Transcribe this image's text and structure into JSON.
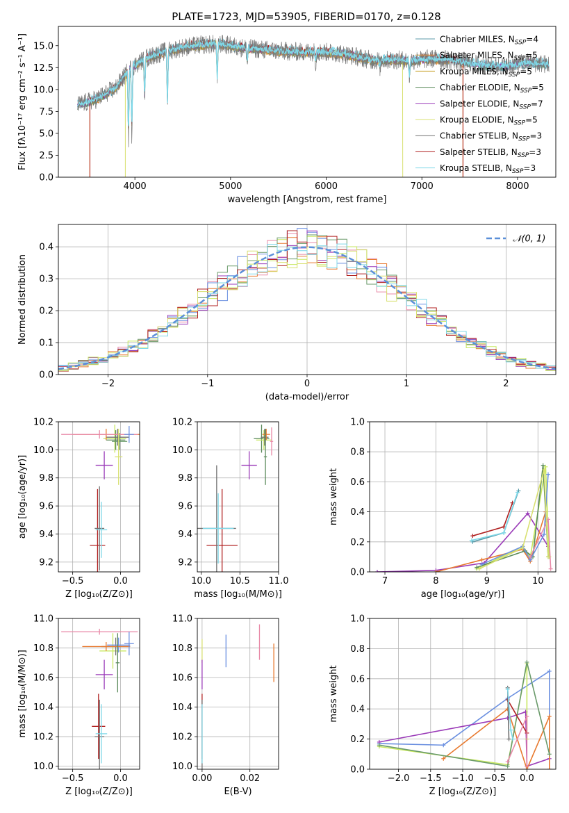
{
  "figure": {
    "title": "PLATE=1723, MJD=53905, FIBERID=0170, z=0.128"
  },
  "colors": {
    "Chabrier MILES": "#5b9aa8",
    "Salpeter MILES": "#e8913c",
    "Kroupa MILES": "#c8a02a",
    "Chabrier ELODIE": "#5a8a5a",
    "Salpeter ELODIE": "#9a3ab8",
    "Kroupa ELODIE": "#d8e070",
    "Chabrier STELIB": "#707070",
    "Salpeter STELIB": "#b02020",
    "Kroupa STELIB": "#7fd8e8",
    "extra blue": "#6a8fe0",
    "extra orange": "#e87a30",
    "extra pink": "#e88aa8",
    "extra lime": "#c8e860",
    "extra green": "#6a9a6a"
  },
  "chart_data": [
    {
      "id": "spectrum",
      "type": "line",
      "title": "PLATE=1723, MJD=53905, FIBERID=0170, z=0.128",
      "xlabel": "wavelength [Angstrom, rest frame]",
      "ylabel": "Flux [fλ10⁻¹⁷ erg cm⁻² s⁻¹ A⁻¹]",
      "xlim": [
        3200,
        8400
      ],
      "ylim": [
        0,
        17.2
      ],
      "xticks": [
        4000,
        5000,
        6000,
        7000,
        8000
      ],
      "yticks": [
        0.0,
        2.5,
        5.0,
        7.5,
        10.0,
        12.5,
        15.0
      ],
      "grid": false,
      "legend_position": "upper right",
      "legend": [
        {
          "main": "Chabrier MILES, N",
          "sub": "SSP",
          "tail": "=4",
          "color": "#5b9aa8"
        },
        {
          "main": "Salpeter MILES, N",
          "sub": "SSP",
          "tail": "=5",
          "color": "#e8913c"
        },
        {
          "main": "Kroupa MILES, N",
          "sub": "SSP",
          "tail": "=5",
          "color": "#c8a02a"
        },
        {
          "main": "Chabrier ELODIE, N",
          "sub": "SSP",
          "tail": "=5",
          "color": "#5a8a5a"
        },
        {
          "main": "Salpeter ELODIE, N",
          "sub": "SSP",
          "tail": "=7",
          "color": "#9a3ab8"
        },
        {
          "main": "Kroupa ELODIE, N",
          "sub": "SSP",
          "tail": "=5",
          "color": "#d8e070"
        },
        {
          "main": "Chabrier STELIB, N",
          "sub": "SSP",
          "tail": "=3",
          "color": "#707070"
        },
        {
          "main": "Salpeter STELIB, N",
          "sub": "SSP",
          "tail": "=3",
          "color": "#b02020"
        },
        {
          "main": "Kroupa STELIB, N",
          "sub": "SSP",
          "tail": "=3",
          "color": "#7fd8e8"
        }
      ],
      "continuum": [
        [
          3400,
          8.2
        ],
        [
          3600,
          8.9
        ],
        [
          3800,
          10.2
        ],
        [
          3950,
          12.4
        ],
        [
          4100,
          13.5
        ],
        [
          4300,
          14.3
        ],
        [
          4500,
          14.8
        ],
        [
          4700,
          15.1
        ],
        [
          4900,
          15.2
        ],
        [
          5100,
          14.8
        ],
        [
          5300,
          14.6
        ],
        [
          5500,
          14.4
        ],
        [
          5700,
          14.3
        ],
        [
          5900,
          14.3
        ],
        [
          6100,
          14.2
        ],
        [
          6300,
          13.8
        ],
        [
          6500,
          13.3
        ],
        [
          6700,
          13.4
        ],
        [
          6900,
          13.3
        ],
        [
          7100,
          13.5
        ],
        [
          7300,
          13.4
        ],
        [
          7500,
          13.0
        ],
        [
          7700,
          12.7
        ],
        [
          7900,
          12.7
        ],
        [
          8100,
          13.1
        ],
        [
          8300,
          12.9
        ]
      ],
      "dips": [
        [
          3933,
          3.6
        ],
        [
          3968,
          4.2
        ],
        [
          4102,
          8.5
        ],
        [
          4340,
          7.8
        ],
        [
          4861,
          10.5
        ],
        [
          5175,
          12.8
        ],
        [
          5890,
          13.0
        ],
        [
          6563,
          12.5
        ],
        [
          6870,
          11.2
        ]
      ],
      "cutoffs": [
        {
          "series": "Salpeter STELIB",
          "range": [
            3530,
            7430
          ]
        },
        {
          "series": "Kroupa ELODIE",
          "range": [
            3900,
            6800
          ]
        },
        {
          "series": "Salpeter MILES",
          "range": [
            3530,
            7430
          ]
        },
        {
          "series": "Kroupa MILES",
          "range": [
            3530,
            7430
          ]
        }
      ]
    },
    {
      "id": "residuals",
      "type": "step",
      "xlabel": "(data-model)/error",
      "ylabel": "Normed distribution",
      "xlim": [
        -2.5,
        2.5
      ],
      "ylim": [
        0,
        0.47
      ],
      "xticks": [
        -2,
        -1,
        0,
        1,
        2
      ],
      "yticks": [
        0.0,
        0.1,
        0.2,
        0.3,
        0.4
      ],
      "grid": true,
      "legend_position": "upper right",
      "reference": {
        "name": "𝒩(0, 1)",
        "mu": 0,
        "sigma": 1,
        "color": "#5b8fd8"
      },
      "bin_width": 0.1,
      "bin_start": -2.5,
      "series_colors": [
        "#e88aa8",
        "#e87a30",
        "#6a8fe0",
        "#9a3ab8",
        "#c8e860",
        "#6a9a6a",
        "#b02020",
        "#d8e070",
        "#7fd8e8"
      ]
    },
    {
      "id": "age-vs-Z",
      "type": "errorbar",
      "xlabel": "Z [log₁₀(Z/Z⊙)]",
      "ylabel": "age  [log₁₀(age/yr)]",
      "xlim": [
        -0.65,
        0.2
      ],
      "ylim": [
        9.13,
        10.2
      ],
      "xticks": [
        -0.5,
        0.0
      ],
      "yticks": [
        9.2,
        9.4,
        9.6,
        9.8,
        10.0,
        10.2
      ],
      "grid": true,
      "points": [
        {
          "x": -0.24,
          "y": 9.32,
          "xerr": 0.08,
          "yerr": 0.4,
          "color": "#b02020"
        },
        {
          "x": -0.22,
          "y": 9.44,
          "xerr": 0.05,
          "yerr": 0.3,
          "color": "#707070"
        },
        {
          "x": -0.2,
          "y": 9.43,
          "xerr": 0.06,
          "yerr": 0.2,
          "color": "#7fd8e8"
        },
        {
          "x": -0.17,
          "y": 9.89,
          "xerr": 0.09,
          "yerr": 0.1,
          "color": "#9a3ab8"
        },
        {
          "x": -0.06,
          "y": 10.08,
          "xerr": 0.12,
          "yerr": 0.1,
          "color": "#c8e860"
        },
        {
          "x": -0.05,
          "y": 10.07,
          "xerr": 0.1,
          "yerr": 0.07,
          "color": "#5a8a5a"
        },
        {
          "x": -0.03,
          "y": 10.09,
          "xerr": 0.12,
          "yerr": 0.06,
          "color": "#707070"
        },
        {
          "x": -0.01,
          "y": 10.06,
          "xerr": 0.08,
          "yerr": 0.06,
          "color": "#6a9a6a"
        },
        {
          "x": -0.15,
          "y": 10.11,
          "xerr": 0.35,
          "yerr": 0.04,
          "color": "#e87a30"
        },
        {
          "x": -0.22,
          "y": 10.11,
          "xerr": 0.4,
          "yerr": 0.03,
          "color": "#e88aa8"
        },
        {
          "x": 0.09,
          "y": 10.11,
          "xerr": 0.05,
          "yerr": 0.06,
          "color": "#6a8fe0"
        },
        {
          "x": -0.02,
          "y": 9.95,
          "xerr": 0.04,
          "yerr": 0.2,
          "color": "#d8e070"
        }
      ]
    },
    {
      "id": "age-vs-mass",
      "type": "errorbar",
      "xlabel": "mass [log₁₀(M/M⊙)]",
      "ylabel": "",
      "xlim": [
        9.95,
        11.0
      ],
      "ylim": [
        9.13,
        10.2
      ],
      "xticks": [
        10.0,
        10.5,
        11.0
      ],
      "yticks": [
        9.2,
        9.4,
        9.6,
        9.8,
        10.0,
        10.2
      ],
      "grid": true,
      "points": [
        {
          "x": 10.27,
          "y": 9.32,
          "xerr": 0.2,
          "yerr": 0.4,
          "color": "#b02020"
        },
        {
          "x": 10.2,
          "y": 9.44,
          "xerr": 0.25,
          "yerr": 0.45,
          "color": "#707070"
        },
        {
          "x": 10.22,
          "y": 9.44,
          "xerr": 0.2,
          "yerr": 0.25,
          "color": "#7fd8e8"
        },
        {
          "x": 10.62,
          "y": 9.89,
          "xerr": 0.1,
          "yerr": 0.1,
          "color": "#9a3ab8"
        },
        {
          "x": 10.78,
          "y": 10.08,
          "xerr": 0.1,
          "yerr": 0.1,
          "color": "#5a8a5a"
        },
        {
          "x": 10.81,
          "y": 10.07,
          "xerr": 0.1,
          "yerr": 0.07,
          "color": "#c8e860"
        },
        {
          "x": 10.82,
          "y": 10.09,
          "xerr": 0.05,
          "yerr": 0.06,
          "color": "#707070"
        },
        {
          "x": 10.84,
          "y": 10.11,
          "xerr": 0.05,
          "yerr": 0.04,
          "color": "#e87a30"
        },
        {
          "x": 10.91,
          "y": 10.06,
          "xerr": 0.02,
          "yerr": 0.1,
          "color": "#e88aa8"
        },
        {
          "x": 10.83,
          "y": 9.95,
          "xerr": 0.02,
          "yerr": 0.2,
          "color": "#5a8a5a"
        }
      ]
    },
    {
      "id": "weight-vs-age",
      "type": "line",
      "xlabel": "age  [log₁₀(age/yr)]",
      "ylabel": "mass weight",
      "xlim": [
        6.7,
        10.35
      ],
      "ylim": [
        0,
        1.0
      ],
      "xticks": [
        7,
        8,
        9,
        10
      ],
      "yticks": [
        0.0,
        0.2,
        0.4,
        0.6,
        0.8,
        1.0
      ],
      "grid": true,
      "series": [
        {
          "color": "#b02020",
          "x": [
            8.72,
            9.33,
            9.5
          ],
          "y": [
            0.24,
            0.3,
            0.46
          ]
        },
        {
          "color": "#5b9aa8",
          "x": [
            8.72,
            9.33,
            9.62
          ],
          "y": [
            0.2,
            0.26,
            0.54
          ]
        },
        {
          "color": "#7fd8e8",
          "x": [
            8.7,
            9.33,
            9.6
          ],
          "y": [
            0.21,
            0.26,
            0.53
          ]
        },
        {
          "color": "#9a3ab8",
          "x": [
            6.85,
            8.0,
            8.95,
            9.8,
            10.2
          ],
          "y": [
            0.0,
            0.01,
            0.06,
            0.39,
            0.17
          ]
        },
        {
          "color": "#e87a30",
          "x": [
            8.0,
            8.9,
            9.7,
            9.85,
            10.15
          ],
          "y": [
            0.0,
            0.08,
            0.15,
            0.07,
            0.4
          ]
        },
        {
          "color": "#c8e860",
          "x": [
            8.8,
            9.7,
            9.85,
            10.15,
            10.22
          ],
          "y": [
            0.02,
            0.17,
            0.1,
            0.7,
            0.1
          ]
        },
        {
          "color": "#5a8a5a",
          "x": [
            8.8,
            9.75,
            9.9,
            10.1,
            10.2
          ],
          "y": [
            0.03,
            0.14,
            0.1,
            0.71,
            0.1
          ]
        },
        {
          "color": "#6a8fe0",
          "x": [
            8.9,
            9.7,
            9.85,
            10.12,
            10.2
          ],
          "y": [
            0.05,
            0.17,
            0.08,
            0.25,
            0.65
          ]
        },
        {
          "color": "#e88aa8",
          "x": [
            9.85,
            10.2,
            10.25
          ],
          "y": [
            0.1,
            0.35,
            0.02
          ]
        },
        {
          "color": "#d8e070",
          "x": [
            8.85,
            9.7,
            10.12,
            10.2
          ],
          "y": [
            0.02,
            0.16,
            0.68,
            0.1
          ]
        }
      ]
    },
    {
      "id": "mass-vs-Z",
      "type": "errorbar",
      "xlabel": "Z [log₁₀(Z/Z⊙)]",
      "ylabel": "mass [log₁₀(M/M⊙)]",
      "xlim": [
        -0.65,
        0.2
      ],
      "ylim": [
        9.98,
        11.0
      ],
      "xticks": [
        -0.5,
        0.0
      ],
      "yticks": [
        10.0,
        10.2,
        10.4,
        10.6,
        10.8,
        11.0
      ],
      "grid": true,
      "points": [
        {
          "x": -0.23,
          "y": 10.27,
          "xerr": 0.07,
          "yerr": 0.22,
          "color": "#b02020"
        },
        {
          "x": -0.22,
          "y": 10.2,
          "xerr": 0.05,
          "yerr": 0.25,
          "color": "#707070"
        },
        {
          "x": -0.2,
          "y": 10.22,
          "xerr": 0.06,
          "yerr": 0.2,
          "color": "#7fd8e8"
        },
        {
          "x": -0.17,
          "y": 10.62,
          "xerr": 0.09,
          "yerr": 0.1,
          "color": "#9a3ab8"
        },
        {
          "x": -0.08,
          "y": 10.78,
          "xerr": 0.14,
          "yerr": 0.12,
          "color": "#c8e860"
        },
        {
          "x": -0.05,
          "y": 10.81,
          "xerr": 0.15,
          "yerr": 0.06,
          "color": "#707070"
        },
        {
          "x": -0.02,
          "y": 10.82,
          "xerr": 0.12,
          "yerr": 0.05,
          "color": "#6a8fe0"
        },
        {
          "x": -0.15,
          "y": 10.81,
          "xerr": 0.25,
          "yerr": 0.03,
          "color": "#e87a30"
        },
        {
          "x": -0.22,
          "y": 10.91,
          "xerr": 0.4,
          "yerr": 0.02,
          "color": "#e88aa8"
        },
        {
          "x": 0.09,
          "y": 10.83,
          "xerr": 0.05,
          "yerr": 0.08,
          "color": "#6a8fe0"
        },
        {
          "x": -0.03,
          "y": 10.7,
          "xerr": 0.02,
          "yerr": 0.2,
          "color": "#5a8a5a"
        }
      ]
    },
    {
      "id": "mass-vs-EBV",
      "type": "errorbar",
      "xlabel": "E(B-V)",
      "ylabel": "",
      "xlim": [
        -0.002,
        0.032
      ],
      "ylim": [
        9.98,
        11.0
      ],
      "xticks": [
        0.0,
        0.02
      ],
      "yticks": [
        10.0,
        10.2,
        10.4,
        10.6,
        10.8,
        11.0
      ],
      "grid": true,
      "points": [
        {
          "x": 0.0,
          "y": 10.27,
          "xerr": 0,
          "yerr": 0.22,
          "color": "#b02020"
        },
        {
          "x": 0.0,
          "y": 10.2,
          "xerr": 0,
          "yerr": 0.25,
          "color": "#707070"
        },
        {
          "x": 0.0,
          "y": 10.22,
          "xerr": 0,
          "yerr": 0.2,
          "color": "#7fd8e8"
        },
        {
          "x": 0.0,
          "y": 10.78,
          "xerr": 0,
          "yerr": 0.08,
          "color": "#d8e070"
        },
        {
          "x": 0.0,
          "y": 10.62,
          "xerr": 0,
          "yerr": 0.1,
          "color": "#9a3ab8"
        },
        {
          "x": 0.01,
          "y": 10.78,
          "xerr": 0,
          "yerr": 0.11,
          "color": "#6a8fe0"
        },
        {
          "x": 0.024,
          "y": 10.84,
          "xerr": 0,
          "yerr": 0.12,
          "color": "#e88aa8"
        },
        {
          "x": 0.03,
          "y": 10.7,
          "xerr": 0,
          "yerr": 0.13,
          "color": "#e87a30"
        }
      ]
    },
    {
      "id": "weight-vs-Z",
      "type": "line",
      "xlabel": "Z [log₁₀(Z/Z⊙)]",
      "ylabel": "mass weight",
      "xlim": [
        -2.45,
        0.45
      ],
      "ylim": [
        0,
        1.0
      ],
      "xticks": [
        -2.0,
        -1.5,
        -1.0,
        -0.5,
        0.0
      ],
      "yticks": [
        0.0,
        0.2,
        0.4,
        0.6,
        0.8,
        1.0
      ],
      "grid": true,
      "series": [
        {
          "color": "#6a8fe0",
          "x": [
            -2.3,
            -1.3,
            -0.3,
            0.35,
            0.35
          ],
          "y": [
            0.17,
            0.16,
            0.47,
            0.65,
            0.0
          ]
        },
        {
          "color": "#9a3ab8",
          "x": [
            -2.3,
            -0.3,
            -0.02,
            0.0,
            0.35
          ],
          "y": [
            0.18,
            0.34,
            0.38,
            0.02,
            0.07
          ]
        },
        {
          "color": "#e87a30",
          "x": [
            -1.3,
            -0.3,
            0.0,
            0.35,
            0.35
          ],
          "y": [
            0.07,
            0.4,
            0.0,
            0.35,
            0.0
          ]
        },
        {
          "color": "#c8e860",
          "x": [
            -2.3,
            -0.3,
            0.0,
            0.0
          ],
          "y": [
            0.15,
            0.03,
            0.7,
            0.2
          ]
        },
        {
          "color": "#6a9a6a",
          "x": [
            -2.3,
            -0.3,
            0.0,
            0.35
          ],
          "y": [
            0.16,
            0.02,
            0.71,
            0.1
          ]
        },
        {
          "color": "#b02020",
          "x": [
            -0.3,
            0.0
          ],
          "y": [
            0.46,
            0.24
          ]
        },
        {
          "color": "#707070",
          "x": [
            -0.3,
            -0.28
          ],
          "y": [
            0.54,
            0.2
          ]
        },
        {
          "color": "#7fd8e8",
          "x": [
            -0.3,
            -0.25,
            -0.22
          ],
          "y": [
            0.53,
            0.26,
            0.2
          ]
        },
        {
          "color": "#e88aa8",
          "x": [
            -0.3,
            0.0,
            0.0
          ],
          "y": [
            0.05,
            0.35,
            0.02
          ]
        }
      ]
    }
  ]
}
